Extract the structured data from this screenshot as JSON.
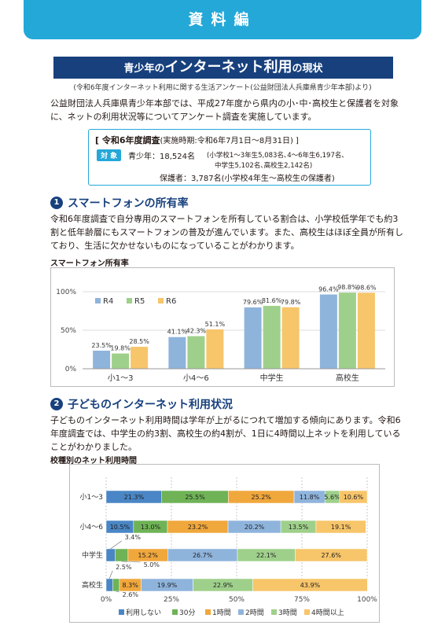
{
  "header": {
    "banner": "資料編"
  },
  "title": {
    "part1": "青少年の",
    "part2": "インターネット利用",
    "part3": "の現状"
  },
  "source_note": "(令和6年度インターネット利用に関する生活アンケート(公益財団法人兵庫県青少年本部)より)",
  "intro": {
    "line1": "公益財団法人兵庫県青少年本部では、平成27年度から県内の小･中･高校生と保護者を対象",
    "line2": "に、ネットの利用状況等についてアンケート調査を実施しています。"
  },
  "survey": {
    "heading_open": "[ 令和6年度調査",
    "heading_period": "(実施時期:令和6年7月1日～8月31日) ]",
    "target_label": "対 象",
    "youth": "青少年：18,524名",
    "youth_detail1": "(小学校1～3年生5,083名､4～6年生6,197名､",
    "youth_detail2": "中学生5,102名､高校生2,142名)",
    "guardian": "保護者：3,787名(小学校4年生～高校生の保護者)"
  },
  "section1": {
    "number": "1",
    "heading": "スマートフォンの所有率",
    "line1": "令和6年度調査で自分専用のスマートフォンを所有している割合は、小学校低学年でも約3",
    "line2": "割と低年齢層にもスマートフォンの普及が進んでいます。また、高校生はほぼ全員が所有し",
    "line3": "ており、生活に欠かせないものになっていることがわかります。",
    "chart_caption": "スマートフォン所有率"
  },
  "section2": {
    "number": "2",
    "heading": "子どものインターネット利用状況",
    "line1": "子どものインターネット利用時間は学年が上がるにつれて増加する傾向にあります。令和6",
    "line2": "年度調査では、中学生の約3割、高校生の約4割が、1日に4時間以上ネットを利用している",
    "line3": "ことがわかりました。",
    "chart_caption": "校種別のネット利用時間"
  },
  "chart_data": [
    {
      "type": "bar",
      "title": "スマートフォン所有率",
      "categories": [
        "小1～3",
        "小4～6",
        "中学生",
        "高校生"
      ],
      "series": [
        {
          "name": "R4",
          "values": [
            23.5,
            41.1,
            79.6,
            96.4
          ],
          "labels": [
            "23.5%",
            "41.1%",
            "79.6%",
            "96.4%"
          ],
          "color": "#8fb4dc"
        },
        {
          "name": "R5",
          "values": [
            19.8,
            42.3,
            81.6,
            98.8
          ],
          "labels": [
            "19.8%",
            "42.3%",
            "81.6%",
            "98.8%"
          ],
          "color": "#9fd08b"
        },
        {
          "name": "R6",
          "values": [
            28.5,
            51.1,
            79.8,
            98.6
          ],
          "labels": [
            "28.5%",
            "51.1%",
            "79.8%",
            "98.6%"
          ],
          "color": "#f7c56a"
        }
      ],
      "yticks": [
        "0%",
        "50%",
        "100%"
      ],
      "ylim": [
        0,
        100
      ],
      "grid": true,
      "legend": "top-left"
    },
    {
      "type": "bar",
      "orientation": "horizontal-stacked",
      "title": "校種別のネット利用時間",
      "categories": [
        "小1～3",
        "小4～6",
        "中学生",
        "高校生"
      ],
      "series": [
        {
          "name": "利用しない",
          "values": [
            21.3,
            10.5,
            3.4,
            2.5
          ],
          "labels": [
            "21.3%",
            "10.5%",
            "3.4%",
            "2.5%"
          ],
          "color": "#4a86c5"
        },
        {
          "name": "30分",
          "values": [
            25.5,
            13.0,
            5.0,
            2.6
          ],
          "labels": [
            "25.5%",
            "13.0%",
            "5.0%",
            "2.6%"
          ],
          "color": "#6fb356"
        },
        {
          "name": "1時間",
          "values": [
            25.2,
            23.2,
            15.2,
            8.3
          ],
          "labels": [
            "25.2%",
            "23.2%",
            "15.2%",
            "8.3%"
          ],
          "color": "#f0a73c"
        },
        {
          "name": "2時間",
          "values": [
            11.8,
            20.2,
            26.7,
            19.9
          ],
          "labels": [
            "11.8%",
            "20.2%",
            "26.7%",
            "19.9%"
          ],
          "color": "#8fb4dc"
        },
        {
          "name": "3時間",
          "values": [
            5.6,
            13.5,
            22.1,
            22.9
          ],
          "labels": [
            "5.6%",
            "13.5%",
            "22.1%",
            "22.9%"
          ],
          "color": "#9fd08b"
        },
        {
          "name": "4時間以上",
          "values": [
            10.6,
            19.1,
            27.6,
            43.9
          ],
          "labels": [
            "10.6%",
            "19.1%",
            "27.6%",
            "43.9%"
          ],
          "color": "#f7c56a"
        }
      ],
      "xticks": [
        "0%",
        "25%",
        "50%",
        "75%",
        "100%"
      ],
      "xlim": [
        0,
        100
      ],
      "grid": true,
      "legend": "bottom"
    }
  ]
}
